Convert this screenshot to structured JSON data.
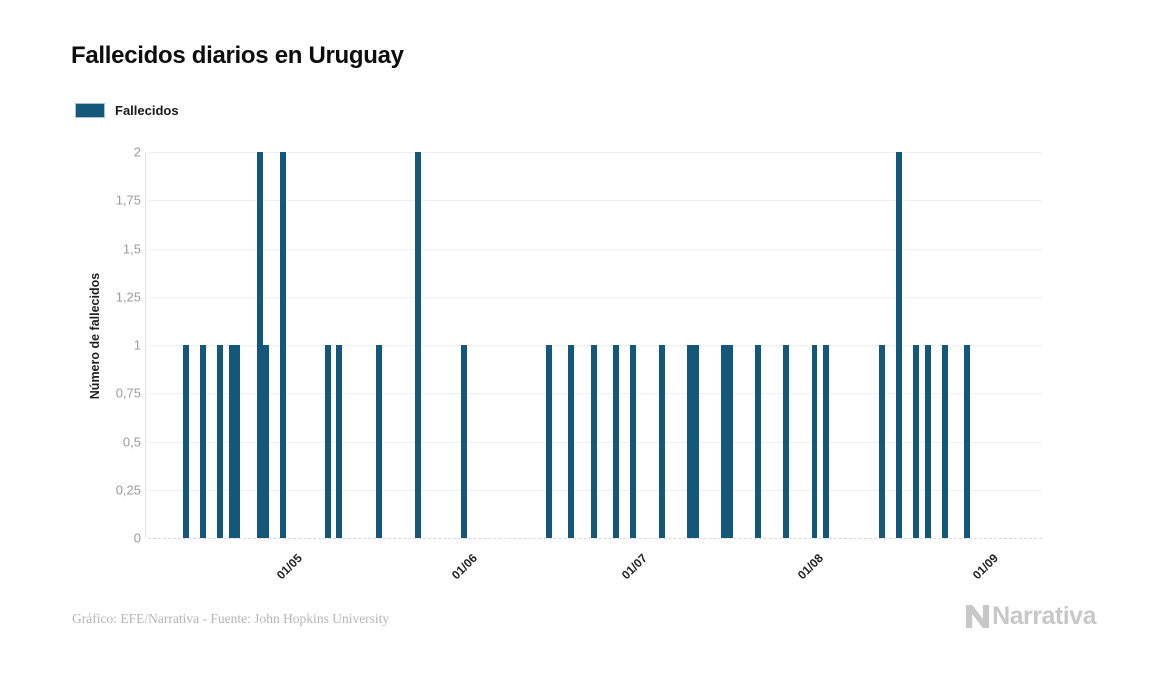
{
  "header": {
    "title": "Fallecidos diarios en Uruguay"
  },
  "legend": {
    "label": "Fallecidos",
    "swatch_color": "#13587a",
    "swatch_border": "#a9c3d3"
  },
  "footer": {
    "credit": "Gráfico: EFE/Narrativa - Fuente: John Hopkins University",
    "brand": "Narrativa"
  },
  "colors": {
    "bar": "#13587a",
    "gridline": "#efefef",
    "zero_line": "#d8d8d8",
    "y_axis_line": "#e2e2e2",
    "y_tick_text": "#9b9b9b",
    "x_tick_text": "#1f1f1f",
    "title_text": "#0d0d0d",
    "credit_text": "#b5b5b5",
    "brand_text": "#c8c8c8"
  },
  "chart_data": {
    "type": "bar",
    "title": "Fallecidos diarios en Uruguay",
    "series_name": "Fallecidos",
    "xlabel": "",
    "ylabel": "Número de fallecidos",
    "ylim": [
      0,
      2
    ],
    "ytick_values": [
      0,
      0.25,
      0.5,
      0.75,
      1,
      1.25,
      1.5,
      1.75,
      2
    ],
    "ytick_labels": [
      "0",
      "0,25",
      "0,5",
      "0,75",
      "1",
      "1,25",
      "1,5",
      "1,75",
      "2"
    ],
    "grid": "horizontal",
    "legend_position": "top-left",
    "x_domain_days": 158,
    "xticks": [
      {
        "day": 26,
        "label": "01/05"
      },
      {
        "day": 57,
        "label": "01/06"
      },
      {
        "day": 87,
        "label": "01/07"
      },
      {
        "day": 118,
        "label": "01/08"
      },
      {
        "day": 149,
        "label": "01/09"
      }
    ],
    "points": [
      {
        "day": 6,
        "date": "11/04",
        "value": 1
      },
      {
        "day": 9,
        "date": "14/04",
        "value": 1
      },
      {
        "day": 12,
        "date": "17/04",
        "value": 1
      },
      {
        "day": 14,
        "date": "19/04",
        "value": 1
      },
      {
        "day": 15,
        "date": "20/04",
        "value": 1
      },
      {
        "day": 19,
        "date": "24/04",
        "value": 2
      },
      {
        "day": 20,
        "date": "25/04",
        "value": 1
      },
      {
        "day": 23,
        "date": "28/04",
        "value": 2
      },
      {
        "day": 31,
        "date": "06/05",
        "value": 1
      },
      {
        "day": 33,
        "date": "08/05",
        "value": 1
      },
      {
        "day": 40,
        "date": "15/05",
        "value": 1
      },
      {
        "day": 47,
        "date": "22/05",
        "value": 2
      },
      {
        "day": 55,
        "date": "30/05",
        "value": 1
      },
      {
        "day": 70,
        "date": "14/06",
        "value": 1
      },
      {
        "day": 74,
        "date": "18/06",
        "value": 1
      },
      {
        "day": 78,
        "date": "22/06",
        "value": 1
      },
      {
        "day": 82,
        "date": "26/06",
        "value": 1
      },
      {
        "day": 85,
        "date": "29/06",
        "value": 1
      },
      {
        "day": 90,
        "date": "04/07",
        "value": 1
      },
      {
        "day": 95,
        "date": "09/07",
        "value": 1
      },
      {
        "day": 96,
        "date": "10/07",
        "value": 1
      },
      {
        "day": 101,
        "date": "15/07",
        "value": 1
      },
      {
        "day": 102,
        "date": "16/07",
        "value": 1
      },
      {
        "day": 107,
        "date": "21/07",
        "value": 1
      },
      {
        "day": 112,
        "date": "26/07",
        "value": 1
      },
      {
        "day": 117,
        "date": "31/07",
        "value": 1
      },
      {
        "day": 119,
        "date": "02/08",
        "value": 1
      },
      {
        "day": 129,
        "date": "12/08",
        "value": 1
      },
      {
        "day": 132,
        "date": "15/08",
        "value": 2
      },
      {
        "day": 135,
        "date": "18/08",
        "value": 1
      },
      {
        "day": 137,
        "date": "20/08",
        "value": 1
      },
      {
        "day": 140,
        "date": "23/08",
        "value": 1
      },
      {
        "day": 144,
        "date": "27/08",
        "value": 1
      }
    ]
  }
}
